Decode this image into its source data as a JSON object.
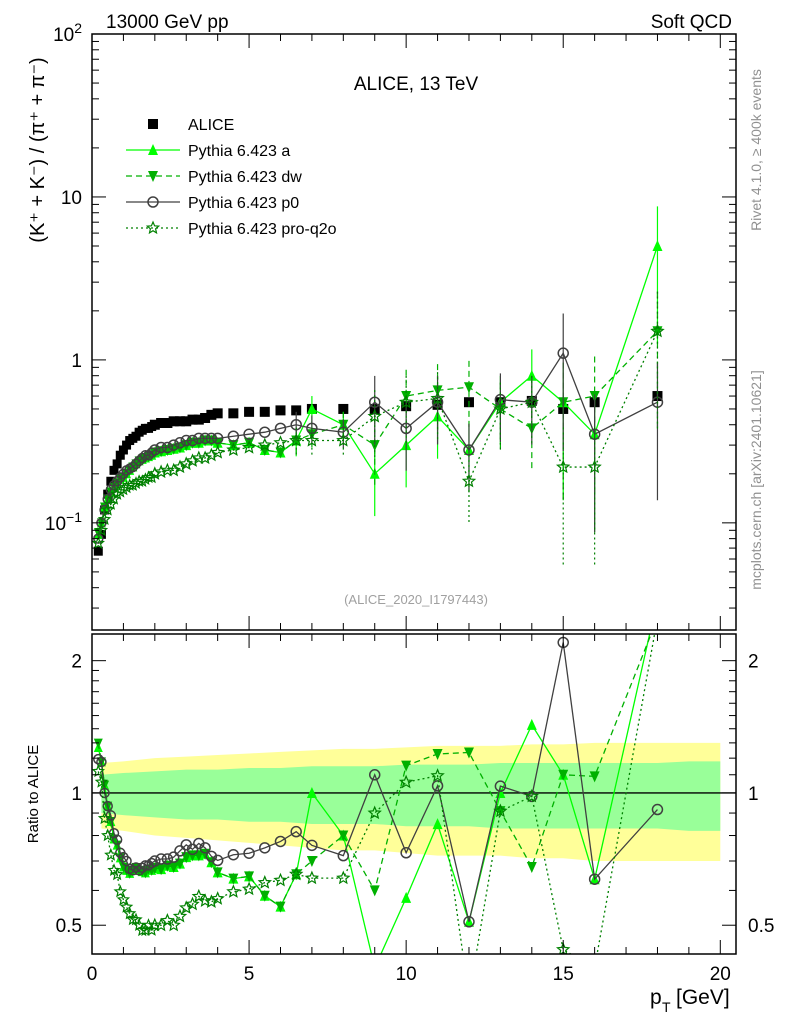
{
  "header": {
    "left": "13000 GeV pp",
    "right": "Soft QCD"
  },
  "side": {
    "rivet": "Rivet 4.1.0, ≥ 400k events",
    "mcplots": "mcplots.cern.ch [arXiv:2401.10621]"
  },
  "chart_data": [
    {
      "type": "scatter",
      "panel": "main",
      "title": "ALICE, 13 TeV",
      "analysis": "(ALICE_2020_I1797443)",
      "ylabel": "(K⁺ + K⁻) / (π⁺ + π⁻)",
      "yscale": "log",
      "xlim": [
        0,
        20.5
      ],
      "ylim": [
        0.022,
        100
      ],
      "y_ticks": [
        {
          "v": 0.1,
          "base": "10",
          "exp": "−1"
        },
        {
          "v": 1,
          "base": "1",
          "exp": ""
        },
        {
          "v": 10,
          "base": "10",
          "exp": ""
        },
        {
          "v": 100,
          "base": "10",
          "exp": "2"
        }
      ],
      "legend": [
        "ALICE",
        "Pythia 6.423 a",
        "Pythia 6.423 dw",
        "Pythia 6.423 p0",
        "Pythia 6.423 pro-q2o"
      ],
      "legend_position": "top-left",
      "x": [
        0.2,
        0.3,
        0.4,
        0.5,
        0.6,
        0.7,
        0.8,
        0.9,
        1.0,
        1.1,
        1.2,
        1.3,
        1.4,
        1.5,
        1.6,
        1.7,
        1.8,
        1.9,
        2.0,
        2.2,
        2.4,
        2.6,
        2.8,
        3.0,
        3.2,
        3.4,
        3.6,
        3.8,
        4.0,
        4.5,
        5.0,
        5.5,
        6.0,
        6.5,
        7.0,
        8.0,
        9.0,
        10.0,
        11.0,
        12.0,
        13.0,
        14.0,
        15.0,
        16.0,
        18.0
      ],
      "series": [
        {
          "name": "ALICE",
          "color": "#000000",
          "marker": "square",
          "values": [
            0.067,
            0.085,
            0.12,
            0.15,
            0.18,
            0.21,
            0.23,
            0.26,
            0.28,
            0.3,
            0.32,
            0.33,
            0.34,
            0.36,
            0.37,
            0.38,
            0.38,
            0.39,
            0.4,
            0.41,
            0.41,
            0.42,
            0.42,
            0.42,
            0.43,
            0.43,
            0.44,
            0.46,
            0.47,
            0.47,
            0.48,
            0.48,
            0.49,
            0.49,
            0.5,
            0.5,
            0.5,
            0.52,
            0.53,
            0.55,
            0.55,
            0.56,
            0.5,
            0.55,
            0.6
          ]
        },
        {
          "name": "Pythia 6.423 a",
          "color": "#00ff00",
          "marker": "triangle-up",
          "line": "solid",
          "values": [
            0.085,
            0.1,
            0.125,
            0.14,
            0.155,
            0.165,
            0.175,
            0.185,
            0.19,
            0.2,
            0.21,
            0.22,
            0.23,
            0.24,
            0.245,
            0.25,
            0.255,
            0.26,
            0.27,
            0.275,
            0.28,
            0.285,
            0.29,
            0.3,
            0.31,
            0.31,
            0.32,
            0.32,
            0.31,
            0.3,
            0.31,
            0.28,
            0.27,
            0.32,
            0.5,
            0.4,
            0.2,
            0.3,
            0.45,
            0.28,
            0.55,
            0.8,
            0.55,
            0.35,
            5.0
          ]
        },
        {
          "name": "Pythia 6.423 dw",
          "color": "#00b000",
          "marker": "triangle-down",
          "line": "dashed",
          "values": [
            0.087,
            0.1,
            0.125,
            0.14,
            0.155,
            0.165,
            0.175,
            0.185,
            0.19,
            0.2,
            0.21,
            0.22,
            0.23,
            0.24,
            0.245,
            0.25,
            0.255,
            0.26,
            0.27,
            0.275,
            0.28,
            0.285,
            0.29,
            0.3,
            0.31,
            0.31,
            0.32,
            0.32,
            0.31,
            0.3,
            0.31,
            0.28,
            0.27,
            0.32,
            0.35,
            0.4,
            0.3,
            0.6,
            0.65,
            0.68,
            0.5,
            0.38,
            0.55,
            0.6,
            1.5
          ]
        },
        {
          "name": "Pythia 6.423 p0",
          "color": "#404040",
          "marker": "circle-open",
          "line": "solid",
          "values": [
            0.08,
            0.1,
            0.12,
            0.14,
            0.16,
            0.17,
            0.18,
            0.19,
            0.2,
            0.21,
            0.215,
            0.22,
            0.23,
            0.24,
            0.25,
            0.26,
            0.26,
            0.27,
            0.28,
            0.29,
            0.29,
            0.3,
            0.31,
            0.32,
            0.32,
            0.33,
            0.33,
            0.33,
            0.33,
            0.34,
            0.35,
            0.36,
            0.38,
            0.4,
            0.38,
            0.36,
            0.55,
            0.38,
            0.55,
            0.28,
            0.57,
            0.55,
            1.1,
            0.35,
            0.55
          ]
        },
        {
          "name": "Pythia 6.423 pro-q2o",
          "color": "#008000",
          "marker": "star",
          "line": "dotted",
          "values": [
            0.075,
            0.09,
            0.105,
            0.12,
            0.13,
            0.14,
            0.15,
            0.155,
            0.16,
            0.165,
            0.17,
            0.17,
            0.175,
            0.18,
            0.18,
            0.185,
            0.19,
            0.19,
            0.2,
            0.205,
            0.21,
            0.21,
            0.22,
            0.23,
            0.24,
            0.25,
            0.25,
            0.26,
            0.27,
            0.28,
            0.29,
            0.3,
            0.31,
            0.32,
            0.32,
            0.32,
            0.45,
            0.55,
            0.58,
            0.18,
            0.5,
            0.55,
            0.22,
            0.22,
            1.5
          ]
        }
      ]
    },
    {
      "type": "scatter",
      "panel": "ratio",
      "ylabel": "Ratio to ALICE",
      "xlabel_main": "p",
      "xlabel_sub": "T",
      "xlabel_unit": "[GeV]",
      "xlim": [
        0,
        20.5
      ],
      "ylim": [
        0.43,
        2.3
      ],
      "x_ticks": [
        "0",
        "5",
        "10",
        "15",
        "20"
      ],
      "y_ticks": [
        "0.5",
        "1",
        "2"
      ],
      "band_x": [
        0.3,
        1,
        2,
        3,
        4,
        5,
        6,
        7,
        8,
        9,
        10,
        11,
        12,
        13,
        14,
        15,
        16,
        17,
        18,
        19,
        20
      ],
      "band_inner_frac": [
        0.1,
        0.11,
        0.12,
        0.13,
        0.13,
        0.14,
        0.14,
        0.15,
        0.15,
        0.15,
        0.16,
        0.16,
        0.16,
        0.17,
        0.17,
        0.17,
        0.17,
        0.17,
        0.17,
        0.18,
        0.18
      ],
      "band_outer_frac": [
        0.17,
        0.18,
        0.2,
        0.21,
        0.22,
        0.23,
        0.24,
        0.25,
        0.26,
        0.26,
        0.27,
        0.28,
        0.28,
        0.28,
        0.29,
        0.29,
        0.3,
        0.3,
        0.3,
        0.3,
        0.3
      ],
      "band_colors": {
        "outer": "#ffff99",
        "inner": "#99ff99"
      }
    }
  ]
}
